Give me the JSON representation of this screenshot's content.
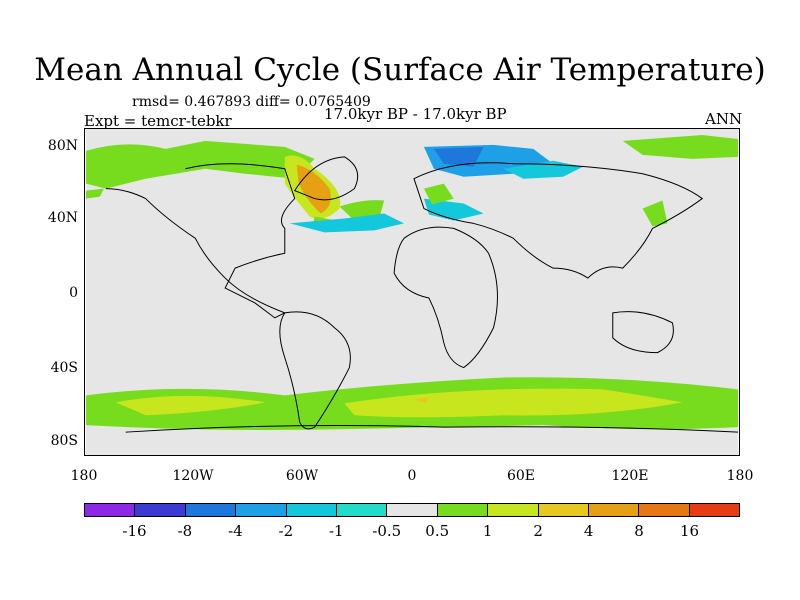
{
  "title": "Mean Annual Cycle (Surface Air Temperature)",
  "stats": "rmsd= 0.467893 diff= 0.0765409",
  "experiment": "Expt = temcr-tebkr",
  "period": "17.0kyr BP - 17.0kyr BP",
  "season": "ANN",
  "lat_labels": [
    "80N",
    "40N",
    "0",
    "40S",
    "80S"
  ],
  "lon_labels": [
    "180",
    "120W",
    "60W",
    "0",
    "60E",
    "120E",
    "180"
  ],
  "colorbar": {
    "colors": [
      "#8c28e6",
      "#3c3cd2",
      "#1e78dc",
      "#1ea0e6",
      "#14c8dc",
      "#20dcc8",
      "#e6e6e6",
      "#78dc1e",
      "#c8e61e",
      "#e6c81e",
      "#e6a014",
      "#e67814",
      "#e63c14"
    ],
    "labels": [
      "-16",
      "-8",
      "-4",
      "-2",
      "-1",
      "-0.5",
      "0.5",
      "1",
      "2",
      "4",
      "8",
      "16"
    ]
  },
  "colors": {
    "land_bg": "#e6e6e6",
    "coast": "#000000"
  }
}
